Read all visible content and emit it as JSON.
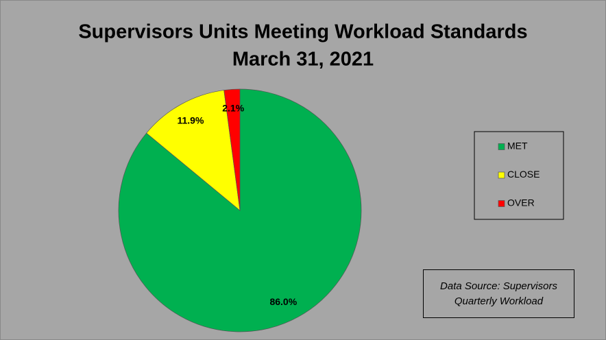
{
  "chart_data": {
    "type": "pie",
    "title": "Supervisors Units Meeting Workload Standards",
    "subtitle": "March 31, 2021",
    "categories": [
      "MET",
      "CLOSE",
      "OVER"
    ],
    "values": [
      86.0,
      11.9,
      2.1
    ],
    "value_labels": [
      "86.0%",
      "11.9%",
      "2.1%"
    ],
    "colors": [
      "#00b050",
      "#ffff00",
      "#ff0000"
    ],
    "legend": "right",
    "annotation": "Data Source: Supervisors Quarterly Workload"
  }
}
